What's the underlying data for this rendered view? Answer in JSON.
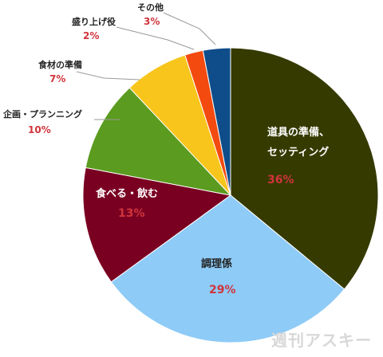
{
  "chart_data": {
    "type": "pie",
    "categories": [
      "道具の準備、\nセッティング",
      "調理係",
      "食べる・飲む",
      "企画・プランニング",
      "食材の準備",
      "盛り上げ役",
      "その他"
    ],
    "values": [
      36,
      29,
      13,
      10,
      7,
      2,
      3
    ],
    "value_labels": [
      "36%",
      "29%",
      "13%",
      "10%",
      "7%",
      "2%",
      "3%"
    ],
    "colors": [
      "#353a00",
      "#8ecbf7",
      "#7a0022",
      "#5b9b1f",
      "#f7c51c",
      "#f24a0f",
      "#0f4d8a"
    ]
  },
  "watermark": "週刊アスキー"
}
